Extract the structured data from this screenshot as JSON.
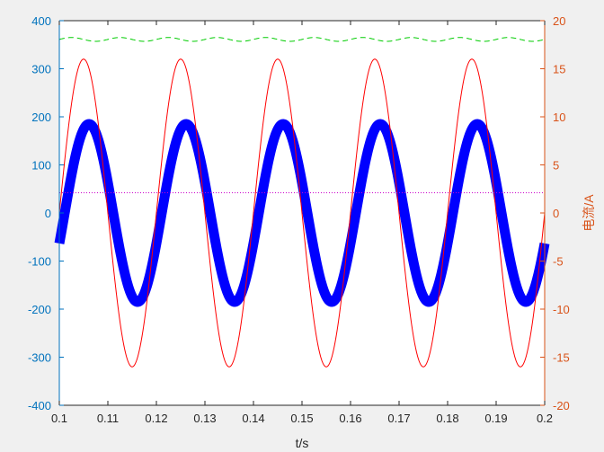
{
  "chart_data": {
    "type": "line",
    "xlabel": "t/s",
    "ylabel_left": "",
    "ylabel_right": "电流/A",
    "xlim": [
      0.1,
      0.2
    ],
    "ylim_left": [
      -400,
      400
    ],
    "ylim_right": [
      -20,
      20
    ],
    "xticks": [
      "0.1",
      "0.11",
      "0.12",
      "0.13",
      "0.14",
      "0.15",
      "0.16",
      "0.17",
      "0.18",
      "0.19",
      "0.2"
    ],
    "yticks_left": [
      "400",
      "300",
      "200",
      "100",
      "0",
      "-100",
      "-200",
      "-300",
      "-400"
    ],
    "yticks_right": [
      "20",
      "15",
      "10",
      "5",
      "0",
      "-5",
      "-10",
      "-15",
      "-20"
    ],
    "grid": false,
    "series": [
      {
        "axis": "left",
        "style": "solid",
        "color": "#0000ff",
        "function": "sine",
        "amplitude": 185,
        "frequency_hz": 50,
        "phase_deg": -20,
        "offset": 0
      },
      {
        "axis": "left",
        "style": "solid",
        "color": "#ff0000",
        "function": "sine",
        "amplitude": 320,
        "frequency_hz": 50,
        "phase_deg": 0,
        "offset": 0
      },
      {
        "axis": "left",
        "style": "dashed",
        "color": "#00cc00",
        "function": "sine",
        "amplitude": 4,
        "frequency_hz": 100,
        "phase_deg": 0,
        "offset": 361
      },
      {
        "axis": "left",
        "style": "dotted",
        "color": "#cc00cc",
        "function": "constant",
        "offset": 42
      }
    ],
    "colors": {
      "left_axis": "#0072bd",
      "right_axis": "#d95319",
      "x_axis": "#262626",
      "plot_bg": "#ffffff",
      "figure_bg": "#f0f0f0"
    }
  }
}
